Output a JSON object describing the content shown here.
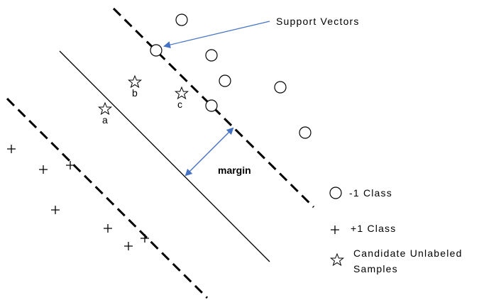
{
  "annotations": {
    "support_vectors": "Support Vectors",
    "margin": "margin"
  },
  "candidates": [
    {
      "label": "a"
    },
    {
      "label": "b"
    },
    {
      "label": "c"
    }
  ],
  "legend": {
    "minus_class": "-1 Class",
    "plus_class": "+1 Class",
    "candidate_line1": "Candidate Unlabeled",
    "candidate_line2": "Samples"
  },
  "colors": {
    "arrow": "#4472C4",
    "ink": "#000000"
  }
}
